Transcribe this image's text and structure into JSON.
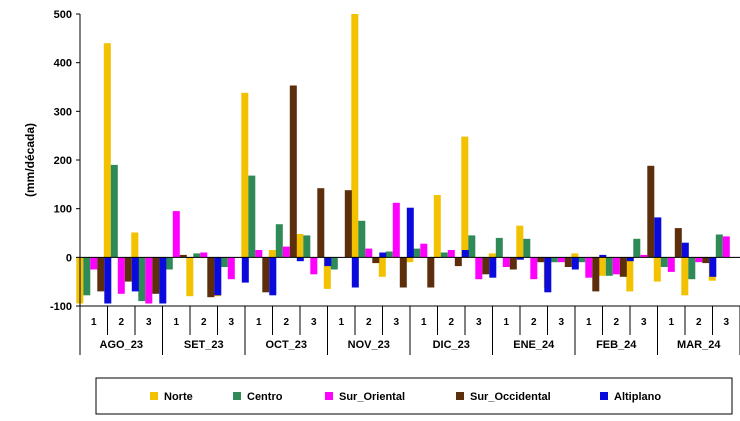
{
  "chart_data": {
    "type": "bar",
    "title": "",
    "xlabel": "",
    "ylabel": "(mm/década)",
    "ylim": [
      -100,
      500
    ],
    "yticks": [
      -100,
      0,
      100,
      200,
      300,
      400,
      500
    ],
    "grid": false,
    "legend_position": "bottom",
    "months": [
      "AGO_23",
      "SET_23",
      "OCT_23",
      "NOV_23",
      "DIC_23",
      "ENE_24",
      "FEB_24",
      "MAR_24"
    ],
    "decades": [
      "1",
      "2",
      "3"
    ],
    "series": [
      {
        "name": "Norte",
        "color": "#F2C200",
        "values": [
          -95,
          440,
          51,
          -65,
          -80,
          -80,
          338,
          15,
          48,
          -65,
          500,
          -40,
          -10,
          128,
          248,
          8,
          65,
          -62,
          8,
          -38,
          -70,
          -50,
          -78,
          -48
        ]
      },
      {
        "name": "Centro",
        "color": "#2E8B57",
        "values": [
          -78,
          190,
          -90,
          -25,
          8,
          -20,
          168,
          68,
          45,
          -25,
          75,
          12,
          18,
          10,
          45,
          40,
          38,
          -10,
          -10,
          -38,
          38,
          -20,
          -45,
          47
        ]
      },
      {
        "name": "Sur_Oriental",
        "color": "#FF00FF",
        "values": [
          -25,
          -75,
          -95,
          95,
          10,
          -45,
          15,
          22,
          -35,
          0,
          18,
          112,
          28,
          15,
          -45,
          -20,
          -45,
          -10,
          -42,
          -35,
          5,
          -30,
          -10,
          43
        ]
      },
      {
        "name": "Sur_Occidental",
        "color": "#5C2E0B",
        "values": [
          -70,
          -50,
          -75,
          5,
          -82,
          0,
          -72,
          353,
          142,
          138,
          -12,
          -62,
          -62,
          -18,
          -35,
          -25,
          -10,
          -20,
          -70,
          -40,
          188,
          60,
          -12,
          0
        ]
      },
      {
        "name": "Altiplano",
        "color": "#0A0ADC",
        "values": [
          -95,
          -70,
          -95,
          0,
          -78,
          -52,
          -78,
          -8,
          -18,
          -62,
          10,
          102,
          0,
          15,
          -42,
          -5,
          -72,
          -25,
          5,
          -8,
          82,
          30,
          -40,
          0
        ]
      }
    ]
  }
}
